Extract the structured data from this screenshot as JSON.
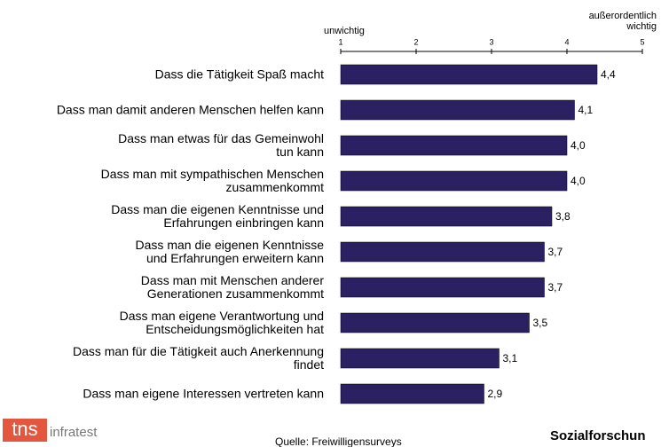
{
  "chart_data": {
    "type": "bar",
    "orientation": "horizontal",
    "axis_label_low": "unwichtig",
    "axis_label_high": "außerordentlich\nwichtig",
    "categories": [
      "Dass die Tätigkeit Spaß macht",
      "Dass man damit anderen Menschen helfen kann",
      "Dass man etwas für das Gemeinwohl\ntun kann",
      "Dass man mit sympathischen Menschen\nzusammenkommt",
      "Dass man die eigenen Kenntnisse und\nErfahrungen einbringen kann",
      "Dass man die eigenen Kenntnisse\nund Erfahrungen erweitern kann",
      "Dass man mit Menschen anderer\nGenerationen zusammenkommt",
      "Dass man eigene Verantwortung und\nEntscheidungsmöglichkeiten hat",
      "Dass man für die Tätigkeit auch Anerkennung\nfindet",
      "Dass man eigene Interessen vertreten kann"
    ],
    "values": [
      4.4,
      4.1,
      4.0,
      4.0,
      3.8,
      3.7,
      3.7,
      3.5,
      3.1,
      2.9
    ],
    "value_labels": [
      "4,4",
      "4,1",
      "4,0",
      "4,0",
      "3,8",
      "3,7",
      "3,7",
      "3,5",
      "3,1",
      "2,9"
    ],
    "color": "#2b2062",
    "xlim": [
      1,
      5
    ],
    "xticks": [
      1,
      2,
      3,
      4,
      5
    ]
  },
  "logo": {
    "brand": "tns",
    "sub": "infratest"
  },
  "source": "Quelle: Freiwilligensurveys",
  "footer_right": "Sozialforschun"
}
